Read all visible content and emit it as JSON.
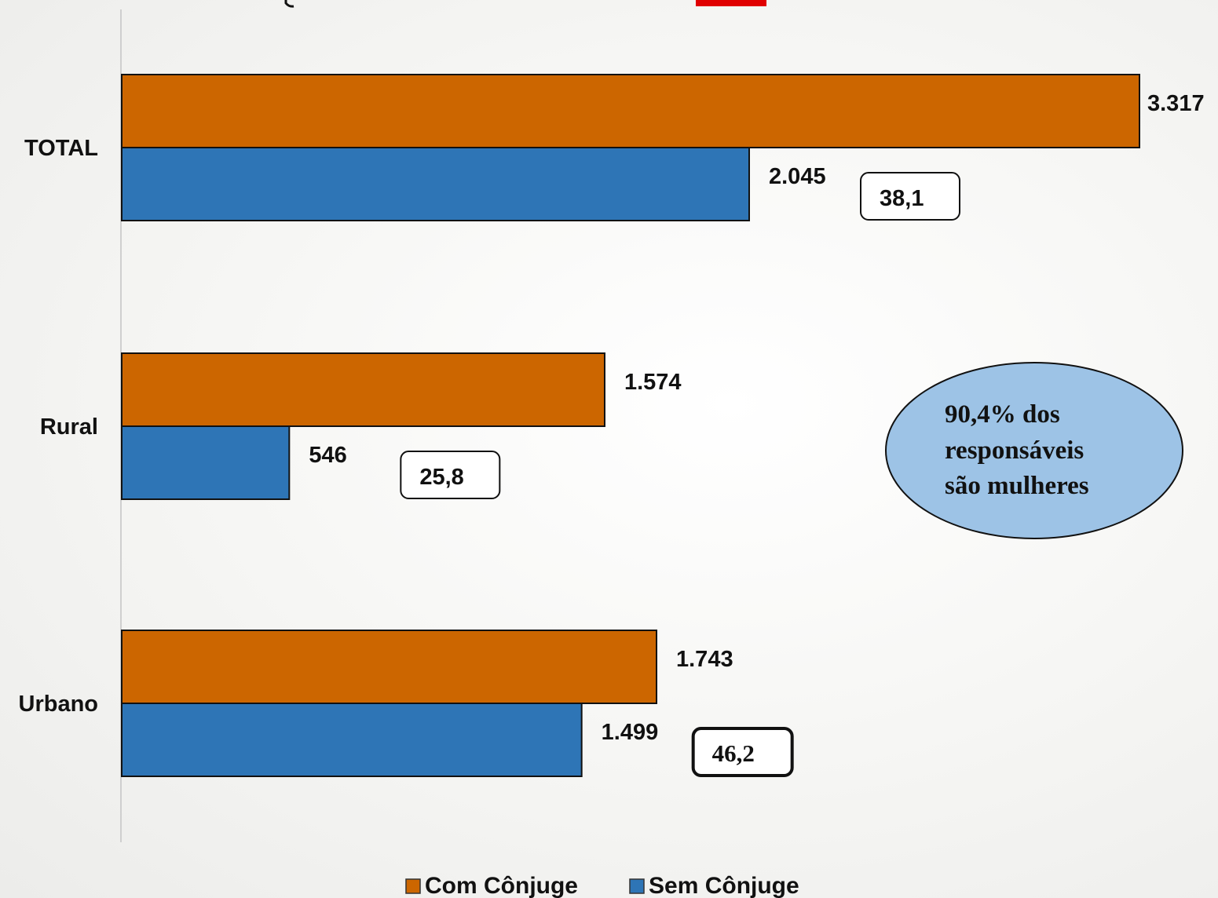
{
  "chart_data": {
    "type": "bar",
    "orientation": "horizontal",
    "categories": [
      "TOTAL",
      "Rural",
      "Urbano"
    ],
    "series": [
      {
        "name": "Com Cônjuge",
        "values": [
          3317,
          1574,
          1743
        ],
        "labels": [
          "3.317",
          "1.574",
          "1.743"
        ],
        "color": "#CC6600"
      },
      {
        "name": "Sem Cônjuge",
        "values": [
          2045,
          546,
          1499
        ],
        "labels": [
          "2.045",
          "546",
          "1.499"
        ],
        "color": "#2E75B6"
      }
    ],
    "percent_boxes": [
      "38,1",
      "25,8",
      "46,2"
    ],
    "xlim": [
      0,
      3317
    ],
    "grid": false,
    "legend_position": "bottom"
  },
  "note": {
    "lines": [
      "90,4% dos",
      "responsáveis",
      "são mulheres"
    ],
    "fill_color": "#9DC3E6"
  }
}
